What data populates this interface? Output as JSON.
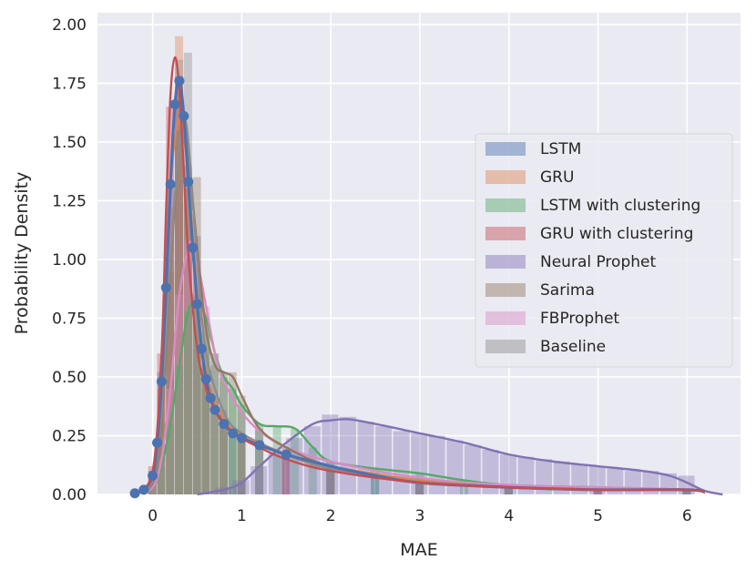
{
  "chart_data": {
    "type": "histogram_kde",
    "xlabel": "MAE",
    "ylabel": "Probability Density",
    "xlim": [
      -0.62,
      6.6
    ],
    "ylim": [
      0,
      2.05
    ],
    "xticks": [
      0,
      1,
      2,
      3,
      4,
      5,
      6
    ],
    "xtick_labels": [
      "0",
      "1",
      "2",
      "3",
      "4",
      "5",
      "6"
    ],
    "yticks": [
      0,
      0.25,
      0.5,
      0.75,
      1.0,
      1.25,
      1.5,
      1.75,
      2.0
    ],
    "ytick_labels": [
      "0.00",
      "0.25",
      "0.50",
      "0.75",
      "1.00",
      "1.25",
      "1.50",
      "1.75",
      "2.00"
    ],
    "grid": true,
    "legend_position": "right",
    "bin_width": 0.1,
    "series": [
      {
        "name": "LSTM",
        "color": "#4c72b0",
        "peak_x": 0.3,
        "peak_y": 1.76,
        "markers": true,
        "kde_x": [
          -0.2,
          -0.1,
          0,
          0.05,
          0.1,
          0.15,
          0.2,
          0.25,
          0.3,
          0.35,
          0.4,
          0.45,
          0.5,
          0.55,
          0.6,
          0.65,
          0.7,
          0.8,
          0.9,
          1.0,
          1.2,
          1.5,
          2.0,
          2.5,
          3.0,
          4.0,
          5.0,
          6.0,
          6.2
        ],
        "kde_y": [
          0.005,
          0.02,
          0.08,
          0.22,
          0.48,
          0.88,
          1.32,
          1.66,
          1.76,
          1.61,
          1.33,
          1.05,
          0.81,
          0.62,
          0.49,
          0.41,
          0.36,
          0.3,
          0.26,
          0.24,
          0.21,
          0.17,
          0.12,
          0.08,
          0.05,
          0.03,
          0.02,
          0.02,
          0.01
        ]
      },
      {
        "name": "GRU",
        "color": "#dd8452",
        "peak_x": 0.3,
        "peak_y": 1.6,
        "markers": false,
        "kde_x": [
          -0.2,
          0,
          0.1,
          0.2,
          0.3,
          0.4,
          0.5,
          0.6,
          0.8,
          1.0,
          1.5,
          2.0,
          3.0,
          4.0,
          5.0,
          6.0,
          6.2
        ],
        "kde_y": [
          0.005,
          0.08,
          0.5,
          1.3,
          1.6,
          1.35,
          0.85,
          0.52,
          0.32,
          0.25,
          0.17,
          0.12,
          0.06,
          0.03,
          0.02,
          0.02,
          0.01
        ]
      },
      {
        "name": "LSTM with clustering",
        "color": "#55a868",
        "peak_x": 0.5,
        "peak_y": 0.82,
        "markers": false,
        "kde_x": [
          -0.2,
          0,
          0.1,
          0.2,
          0.3,
          0.4,
          0.5,
          0.6,
          0.7,
          0.8,
          0.9,
          1.0,
          1.2,
          1.4,
          1.6,
          1.8,
          2.0,
          2.5,
          3.0,
          3.5,
          4.0,
          5.0,
          6.0,
          6.2
        ],
        "kde_y": [
          0.005,
          0.03,
          0.12,
          0.3,
          0.55,
          0.78,
          0.82,
          0.75,
          0.6,
          0.5,
          0.45,
          0.38,
          0.3,
          0.29,
          0.28,
          0.2,
          0.14,
          0.11,
          0.09,
          0.06,
          0.04,
          0.03,
          0.02,
          0.01
        ]
      },
      {
        "name": "GRU with clustering",
        "color": "#c44e52",
        "peak_x": 0.25,
        "peak_y": 1.86,
        "markers": false,
        "kde_x": [
          -0.2,
          0,
          0.1,
          0.15,
          0.2,
          0.25,
          0.3,
          0.35,
          0.4,
          0.5,
          0.6,
          0.7,
          0.8,
          1.0,
          1.2,
          1.5,
          2.0,
          3.0,
          4.0,
          5.0,
          6.0,
          6.2
        ],
        "kde_y": [
          0.005,
          0.1,
          0.6,
          1.2,
          1.7,
          1.86,
          1.72,
          1.38,
          1.02,
          0.62,
          0.45,
          0.36,
          0.3,
          0.24,
          0.2,
          0.15,
          0.1,
          0.05,
          0.03,
          0.02,
          0.02,
          0.01
        ]
      },
      {
        "name": "Neural Prophet",
        "color": "#8172b3",
        "peak_x": 2.1,
        "peak_y": 0.32,
        "markers": false,
        "kde_x": [
          0.5,
          0.8,
          1.0,
          1.2,
          1.5,
          1.8,
          2.0,
          2.2,
          2.5,
          3.0,
          3.5,
          4.0,
          4.5,
          5.0,
          5.5,
          5.8,
          6.0,
          6.2,
          6.4
        ],
        "kde_y": [
          0.0,
          0.02,
          0.05,
          0.12,
          0.22,
          0.3,
          0.315,
          0.32,
          0.3,
          0.26,
          0.22,
          0.17,
          0.14,
          0.12,
          0.1,
          0.08,
          0.05,
          0.015,
          0.0
        ]
      },
      {
        "name": "Sarima",
        "color": "#937860",
        "peak_x": 0.35,
        "peak_y": 1.58,
        "markers": false,
        "kde_x": [
          -0.2,
          0,
          0.1,
          0.2,
          0.3,
          0.35,
          0.4,
          0.5,
          0.6,
          0.7,
          0.8,
          0.9,
          1.0,
          1.2,
          1.5,
          2.0,
          3.0,
          4.0,
          5.0,
          6.0,
          6.2
        ],
        "kde_y": [
          0.005,
          0.05,
          0.3,
          0.95,
          1.5,
          1.58,
          1.45,
          1.05,
          0.7,
          0.55,
          0.52,
          0.5,
          0.42,
          0.28,
          0.2,
          0.12,
          0.06,
          0.03,
          0.02,
          0.02,
          0.01
        ]
      },
      {
        "name": "FBProphet",
        "color": "#da8bc3",
        "peak_x": 0.45,
        "peak_y": 1.07,
        "markers": false,
        "kde_x": [
          -0.2,
          0,
          0.1,
          0.2,
          0.3,
          0.4,
          0.45,
          0.5,
          0.6,
          0.7,
          0.8,
          1.0,
          1.2,
          1.5,
          2.0,
          3.0,
          4.0,
          5.0,
          6.0,
          6.2
        ],
        "kde_y": [
          0.005,
          0.03,
          0.15,
          0.45,
          0.85,
          1.05,
          1.07,
          1.0,
          0.8,
          0.6,
          0.48,
          0.35,
          0.27,
          0.2,
          0.14,
          0.07,
          0.04,
          0.03,
          0.02,
          0.01
        ]
      },
      {
        "name": "Baseline",
        "color": "#8c8c8c",
        "peak_x": 0.35,
        "peak_y": 1.6,
        "markers": false,
        "kde_x": [
          -0.2,
          0,
          0.1,
          0.2,
          0.3,
          0.35,
          0.4,
          0.5,
          0.6,
          0.8,
          1.0,
          1.5,
          2.0,
          3.0,
          4.0,
          5.0,
          6.0,
          6.2
        ],
        "kde_y": [
          0.005,
          0.06,
          0.35,
          1.0,
          1.5,
          1.6,
          1.5,
          1.0,
          0.6,
          0.35,
          0.26,
          0.17,
          0.11,
          0.06,
          0.03,
          0.02,
          0.02,
          0.01
        ]
      }
    ],
    "histogram_bars": [
      {
        "series": "LSTM",
        "x": [
          0.0,
          0.1,
          0.2,
          0.3,
          0.4,
          0.5,
          0.6,
          0.7,
          0.8,
          0.9,
          1.0,
          1.2,
          1.5,
          2.0,
          2.5,
          3.0,
          4.0,
          5.0,
          6.0
        ],
        "y": [
          0.1,
          0.52,
          1.3,
          1.72,
          1.4,
          0.85,
          0.52,
          0.4,
          0.33,
          0.28,
          0.25,
          0.22,
          0.18,
          0.12,
          0.08,
          0.05,
          0.03,
          0.02,
          0.02
        ]
      },
      {
        "series": "GRU",
        "x": [
          0.0,
          0.1,
          0.2,
          0.3,
          0.4,
          0.5,
          0.6,
          0.7,
          0.8,
          1.0,
          1.5,
          2.0,
          3.0,
          4.0,
          5.0,
          6.0
        ],
        "y": [
          0.08,
          0.45,
          1.22,
          1.95,
          1.3,
          0.82,
          0.55,
          0.42,
          0.34,
          0.25,
          0.17,
          0.12,
          0.06,
          0.03,
          0.02,
          0.02
        ]
      },
      {
        "series": "GRU with clustering",
        "x": [
          0.0,
          0.1,
          0.2,
          0.3,
          0.4,
          0.5,
          0.6,
          0.8,
          1.0,
          1.5,
          2.0,
          3.0,
          4.0,
          5.0,
          6.0
        ],
        "y": [
          0.12,
          0.6,
          1.65,
          1.78,
          1.0,
          0.62,
          0.45,
          0.3,
          0.24,
          0.15,
          0.1,
          0.05,
          0.03,
          0.02,
          0.02
        ]
      },
      {
        "series": "Baseline",
        "x": [
          0.0,
          0.1,
          0.2,
          0.3,
          0.4,
          0.5,
          0.6,
          0.8,
          1.0,
          1.5,
          2.0,
          3.0,
          4.0,
          5.0,
          6.0
        ],
        "y": [
          0.06,
          0.35,
          1.0,
          1.85,
          1.88,
          1.1,
          0.62,
          0.36,
          0.26,
          0.17,
          0.11,
          0.06,
          0.03,
          0.02,
          0.02
        ]
      },
      {
        "series": "Sarima",
        "x": [
          0.0,
          0.1,
          0.2,
          0.3,
          0.4,
          0.5,
          0.6,
          0.7,
          0.8,
          0.9,
          1.0,
          1.2,
          1.5,
          2.0,
          3.0,
          4.0,
          5.0,
          6.0
        ],
        "y": [
          0.05,
          0.3,
          0.95,
          1.55,
          1.3,
          1.35,
          0.72,
          0.55,
          0.52,
          0.52,
          0.42,
          0.28,
          0.2,
          0.12,
          0.06,
          0.03,
          0.02,
          0.02
        ]
      },
      {
        "series": "FBProphet",
        "x": [
          0.0,
          0.1,
          0.2,
          0.3,
          0.4,
          0.5,
          0.6,
          0.7,
          0.8,
          1.0,
          1.2,
          1.5,
          2.0,
          3.0,
          4.0,
          5.0,
          6.0
        ],
        "y": [
          0.03,
          0.15,
          0.45,
          0.85,
          1.08,
          1.0,
          0.8,
          0.6,
          0.48,
          0.35,
          0.27,
          0.2,
          0.14,
          0.07,
          0.04,
          0.03,
          0.02
        ]
      },
      {
        "series": "LSTM with clustering",
        "x": [
          0.0,
          0.1,
          0.2,
          0.3,
          0.4,
          0.5,
          0.6,
          0.7,
          0.8,
          0.9,
          1.0,
          1.2,
          1.4,
          1.6,
          1.8,
          2.0,
          2.5,
          3.0,
          3.5,
          4.0,
          5.0,
          6.0
        ],
        "y": [
          0.03,
          0.12,
          0.3,
          0.55,
          0.78,
          0.84,
          0.75,
          0.6,
          0.5,
          0.45,
          0.38,
          0.3,
          0.29,
          0.28,
          0.2,
          0.14,
          0.11,
          0.09,
          0.06,
          0.04,
          0.03,
          0.02
        ]
      },
      {
        "series": "Neural Prophet",
        "x": [
          0.8,
          1.0,
          1.2,
          1.4,
          1.6,
          1.8,
          2.0,
          2.2,
          2.4,
          2.6,
          2.8,
          3.0,
          3.2,
          3.4,
          3.6,
          3.8,
          4.0,
          4.2,
          4.4,
          4.6,
          4.8,
          5.0,
          5.2,
          5.4,
          5.6,
          5.8,
          6.0
        ],
        "y": [
          0.03,
          0.06,
          0.12,
          0.18,
          0.24,
          0.29,
          0.34,
          0.33,
          0.31,
          0.29,
          0.27,
          0.26,
          0.25,
          0.23,
          0.21,
          0.19,
          0.17,
          0.16,
          0.15,
          0.14,
          0.13,
          0.12,
          0.11,
          0.1,
          0.1,
          0.09,
          0.08
        ]
      }
    ]
  }
}
